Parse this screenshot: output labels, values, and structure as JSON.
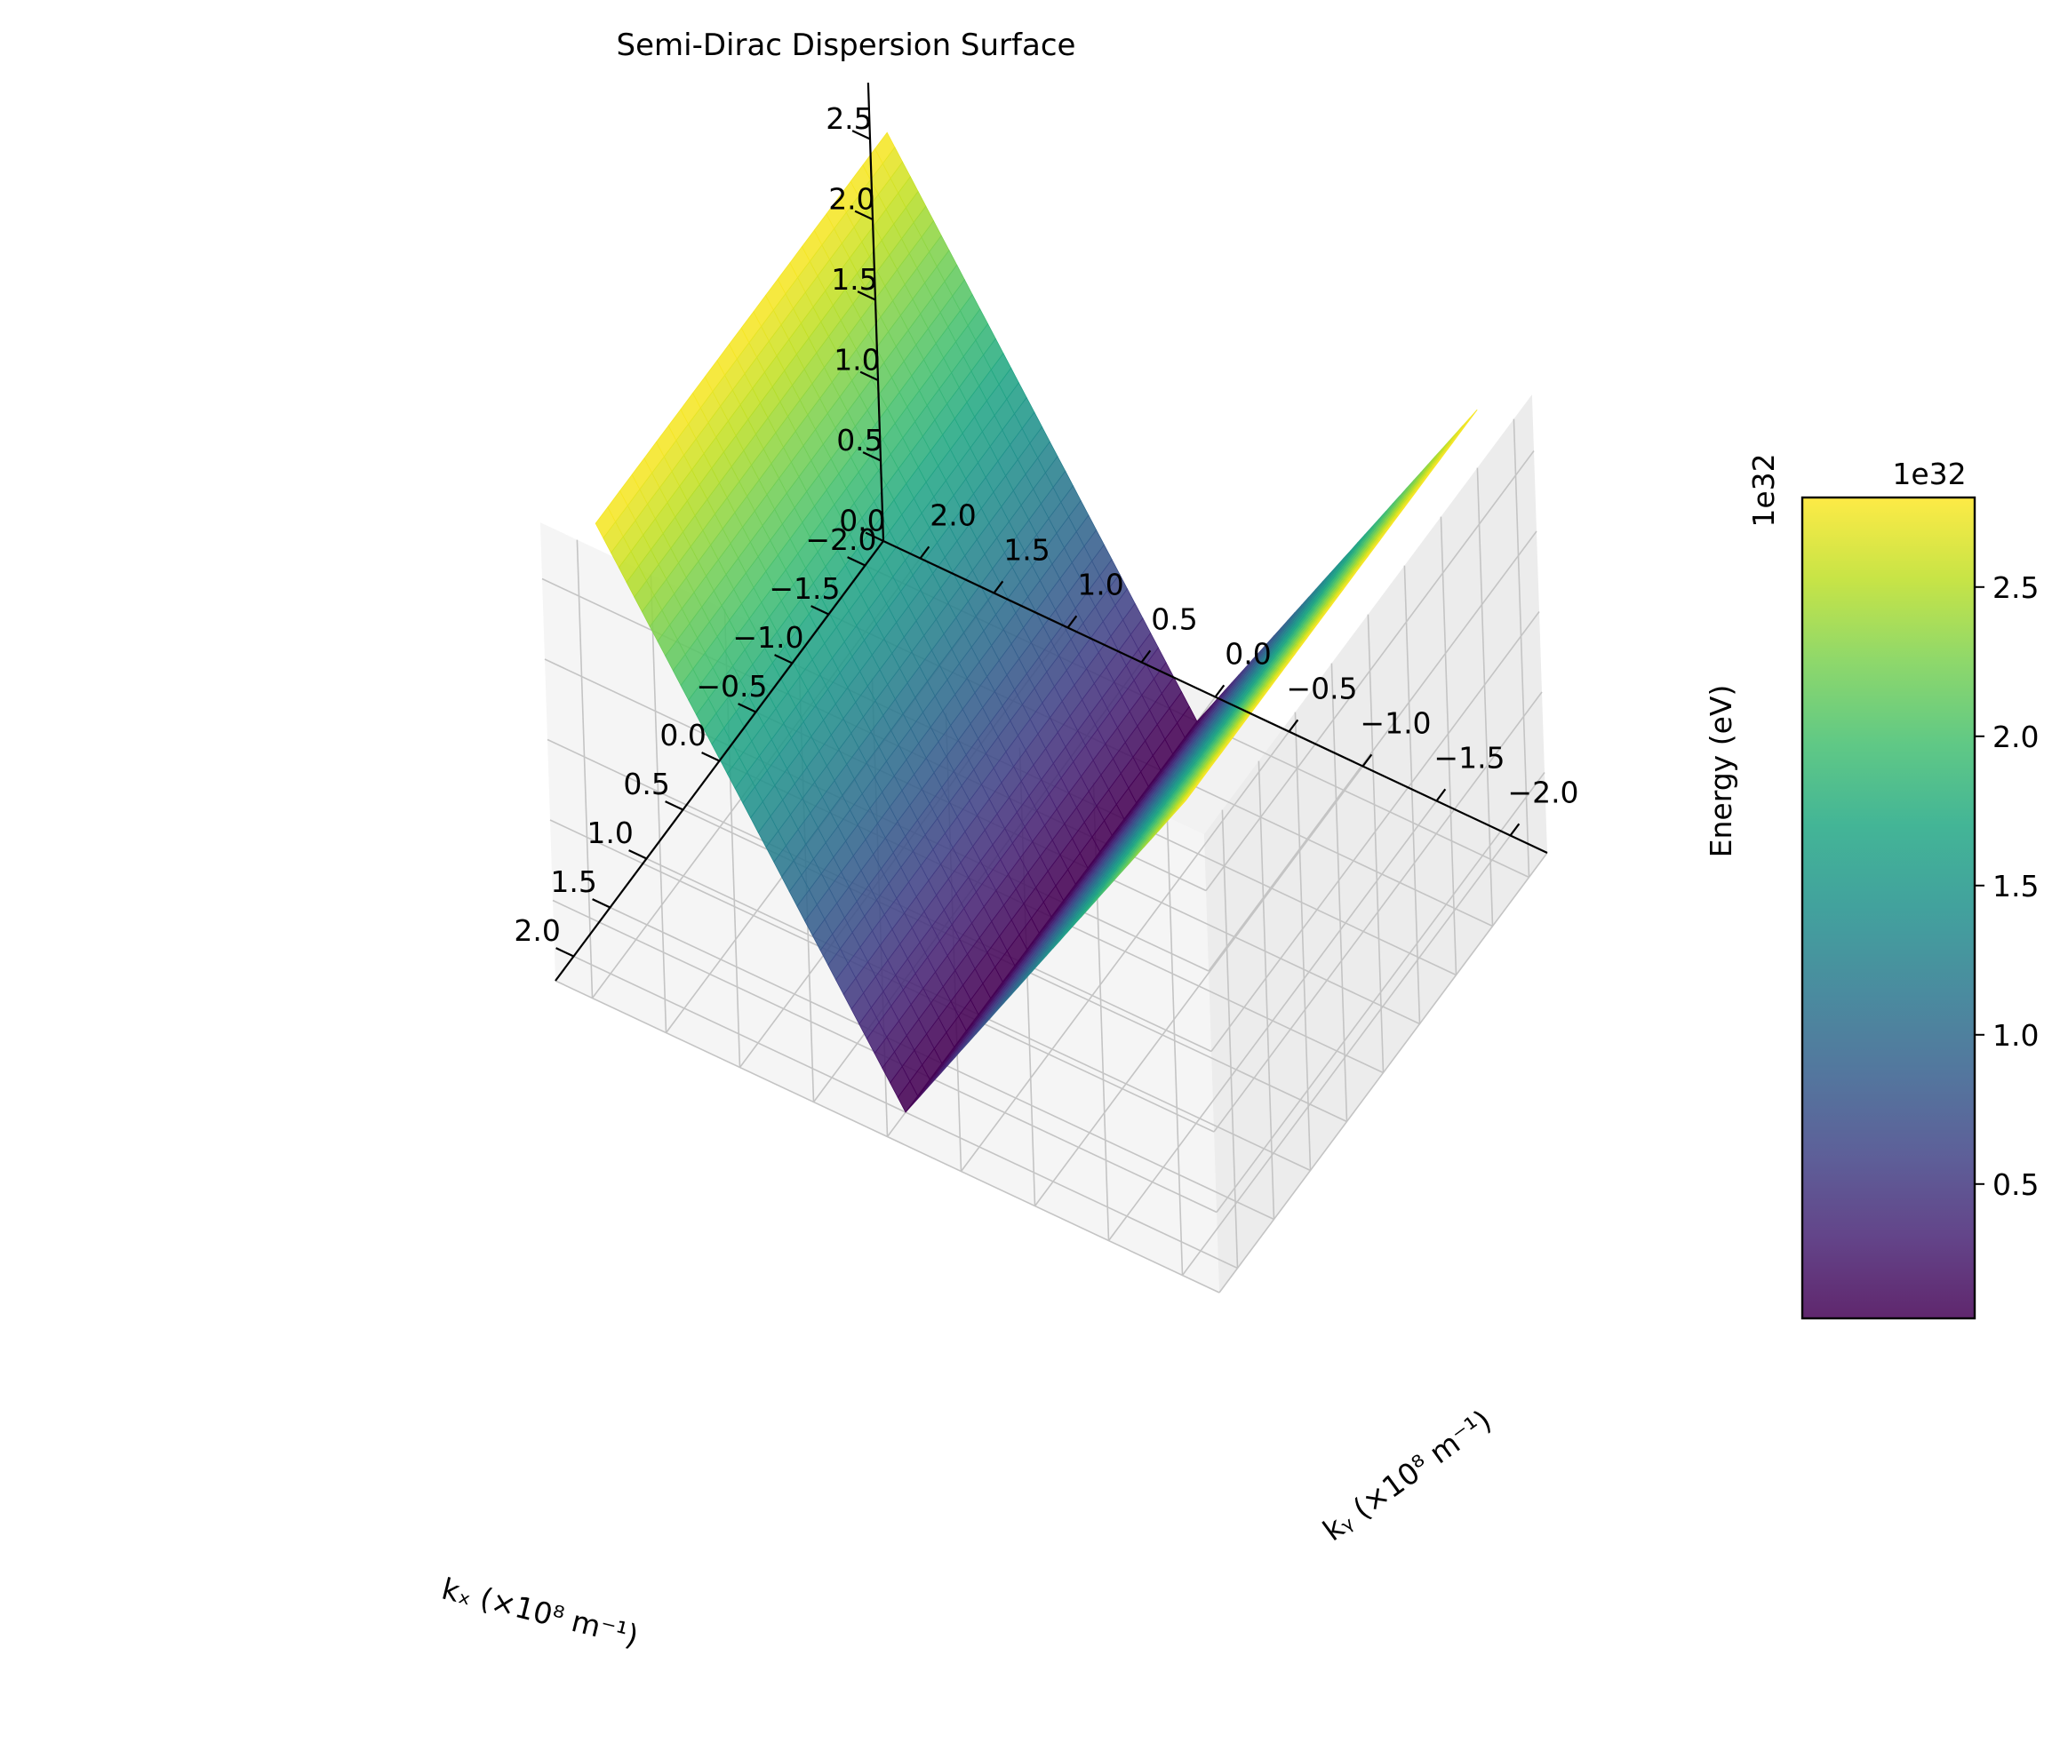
{
  "chart_data": {
    "type": "surface",
    "title": "Semi-Dirac Dispersion Surface",
    "xlabel": "kₓ (×10⁸ m⁻¹)",
    "ylabel": "kᵧ (×10⁸ m⁻¹)",
    "zlabel": "Energy (eV)",
    "z_scale_label": "1e32",
    "xlim": [
      -2.25,
      2.25
    ],
    "ylim": [
      -2.25,
      2.25
    ],
    "zlim": [
      0,
      2.85
    ],
    "x_ticks": [
      -2.0,
      -1.5,
      -1.0,
      -0.5,
      0.0,
      0.5,
      1.0,
      1.5,
      2.0
    ],
    "x_tick_labels": [
      "−2.0",
      "−1.5",
      "−1.0",
      "−0.5",
      "0.0",
      "0.5",
      "1.0",
      "1.5",
      "2.0"
    ],
    "y_ticks": [
      -2.0,
      -1.5,
      -1.0,
      -0.5,
      0.0,
      0.5,
      1.0,
      1.5,
      2.0
    ],
    "y_tick_labels": [
      "−2.0",
      "−1.5",
      "−1.0",
      "−0.5",
      "0.0",
      "0.5",
      "1.0",
      "1.5",
      "2.0"
    ],
    "z_ticks": [
      0.0,
      0.5,
      1.0,
      1.5,
      2.0,
      2.5
    ],
    "z_tick_labels": [
      "0.0",
      "0.5",
      "1.0",
      "1.5",
      "2.0",
      "2.5"
    ],
    "surface": {
      "kx_range": [
        -2.0,
        2.0
      ],
      "ky_range": [
        -2.0,
        2.0
      ],
      "grid_size": 100,
      "energy_at_corners": {
        "kx=-2,ky=-2": 2.8,
        "kx=-2,ky=2": 2.8,
        "kx=2,ky=-2": 2.8,
        "kx=2,ky=2": 2.8,
        "kx=0,ky=0": 0.0
      },
      "model": "E ≈ 1.4·|kx| (linear, weak ky dependence), in units of 1e32 eV"
    },
    "colormap": "viridis",
    "colorbar": {
      "label": "1e32",
      "range": [
        0.05,
        2.8
      ],
      "ticks": [
        0.5,
        1.0,
        1.5,
        2.0,
        2.5
      ],
      "tick_labels": [
        "0.5",
        "1.0",
        "1.5",
        "2.0",
        "2.5"
      ]
    }
  }
}
